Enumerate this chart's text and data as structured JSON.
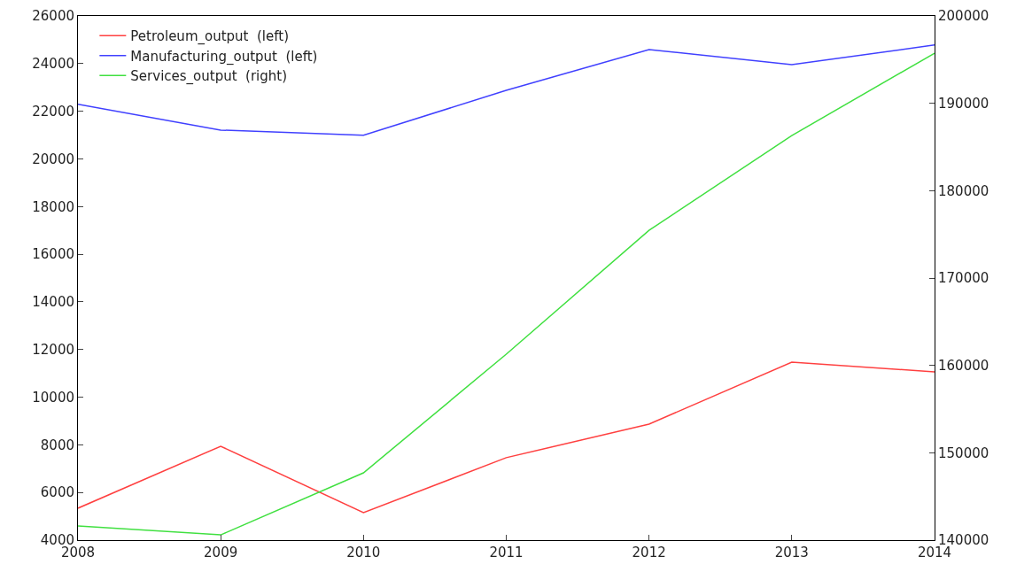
{
  "chart_data": {
    "type": "line",
    "x": [
      2008,
      2009,
      2010,
      2011,
      2012,
      2013,
      2014
    ],
    "series": [
      {
        "name": "Petroleum_output  (left)",
        "color": "#ff4040",
        "values": [
          5340,
          7940,
          5150,
          7460,
          8870,
          11470,
          11060
        ]
      },
      {
        "name": "Manufacturing_output  (left)",
        "color": "#4040ff",
        "values": [
          22290,
          21210,
          20990,
          22880,
          24590,
          23960,
          24780
        ]
      },
      {
        "name": "Services_output  (right)",
        "color": "#40e040",
        "axis": "y2",
        "values": [
          141620,
          140600,
          147700,
          161280,
          175460,
          186300,
          195730
        ]
      }
    ],
    "xlim": [
      2008,
      2014
    ],
    "xticks": [
      2008,
      2009,
      2010,
      2011,
      2012,
      2013,
      2014
    ],
    "ylim": [
      4000,
      26000
    ],
    "yticks": [
      4000,
      6000,
      8000,
      10000,
      12000,
      14000,
      16000,
      18000,
      20000,
      22000,
      24000,
      26000
    ],
    "y2lim": [
      140000,
      200000
    ],
    "y2ticks": [
      140000,
      150000,
      160000,
      170000,
      180000,
      190000,
      200000
    ],
    "grid": false,
    "legend": "top left",
    "marker": "none",
    "line_style": "solid"
  }
}
